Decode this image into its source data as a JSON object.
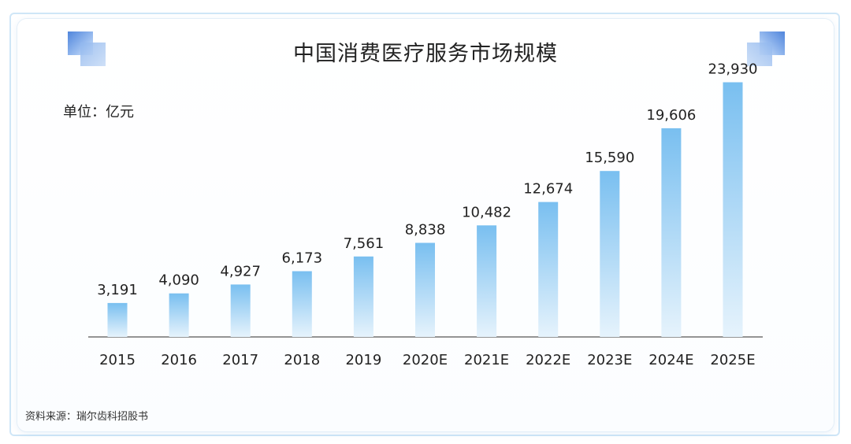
{
  "chart_data": {
    "type": "bar",
    "title": "中国消费医疗服务市场规模",
    "unit_label": "单位：亿元",
    "categories": [
      "2015",
      "2016",
      "2017",
      "2018",
      "2019",
      "2020E",
      "2021E",
      "2022E",
      "2023E",
      "2024E",
      "2025E"
    ],
    "values": [
      3191,
      4090,
      4927,
      6173,
      7561,
      8838,
      10482,
      12674,
      15590,
      19606,
      23930
    ],
    "value_labels": [
      "3,191",
      "4,090",
      "4,927",
      "6,173",
      "7,561",
      "8,838",
      "10,482",
      "12,674",
      "15,590",
      "19,606",
      "23,930"
    ],
    "xlabel": "",
    "ylabel": "",
    "ylim": [
      0,
      25000
    ],
    "grid": false,
    "colors": {
      "bar_top": "#79bff0",
      "bar_bottom": "#e6f3fc",
      "axis": "#555555"
    }
  },
  "source": "资料来源：瑞尔齿科招股书"
}
